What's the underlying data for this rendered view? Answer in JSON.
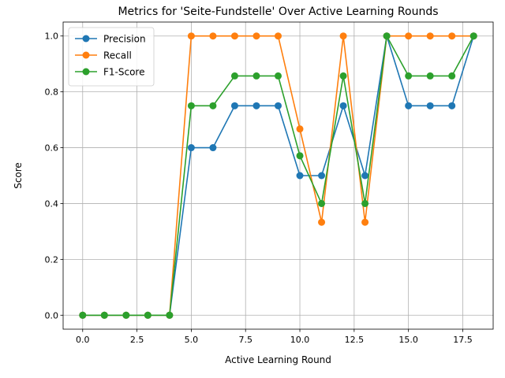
{
  "chart_data": {
    "type": "line",
    "title": "Metrics for 'Seite-Fundstelle' Over Active Learning Rounds",
    "xlabel": "Active Learning Round",
    "ylabel": "Score",
    "xlim": [
      -0.9,
      18.9
    ],
    "ylim": [
      -0.05,
      1.05
    ],
    "xticks": [
      0.0,
      2.5,
      5.0,
      7.5,
      10.0,
      12.5,
      15.0,
      17.5
    ],
    "xtick_labels": [
      "0.0",
      "2.5",
      "5.0",
      "7.5",
      "10.0",
      "12.5",
      "15.0",
      "17.5"
    ],
    "yticks": [
      0.0,
      0.2,
      0.4,
      0.6,
      0.8,
      1.0
    ],
    "ytick_labels": [
      "0.0",
      "0.2",
      "0.4",
      "0.6",
      "0.8",
      "1.0"
    ],
    "grid": true,
    "legend_position": "top-left",
    "x": [
      0,
      1,
      2,
      3,
      4,
      5,
      6,
      7,
      8,
      9,
      10,
      11,
      12,
      13,
      14,
      15,
      16,
      17,
      18
    ],
    "series": [
      {
        "name": "Precision",
        "color": "#1f77b4",
        "values": [
          0,
          0,
          0,
          0,
          0,
          0.6,
          0.6,
          0.75,
          0.75,
          0.75,
          0.5,
          0.5,
          0.75,
          0.5,
          1.0,
          0.75,
          0.75,
          0.75,
          1.0
        ]
      },
      {
        "name": "Recall",
        "color": "#ff7f0e",
        "values": [
          0,
          0,
          0,
          0,
          0,
          1.0,
          1.0,
          1.0,
          1.0,
          1.0,
          0.667,
          0.333,
          1.0,
          0.333,
          1.0,
          1.0,
          1.0,
          1.0,
          1.0
        ]
      },
      {
        "name": "F1-Score",
        "color": "#2ca02c",
        "values": [
          0,
          0,
          0,
          0,
          0,
          0.75,
          0.75,
          0.857,
          0.857,
          0.857,
          0.571,
          0.4,
          0.857,
          0.4,
          1.0,
          0.857,
          0.857,
          0.857,
          1.0
        ]
      }
    ]
  }
}
